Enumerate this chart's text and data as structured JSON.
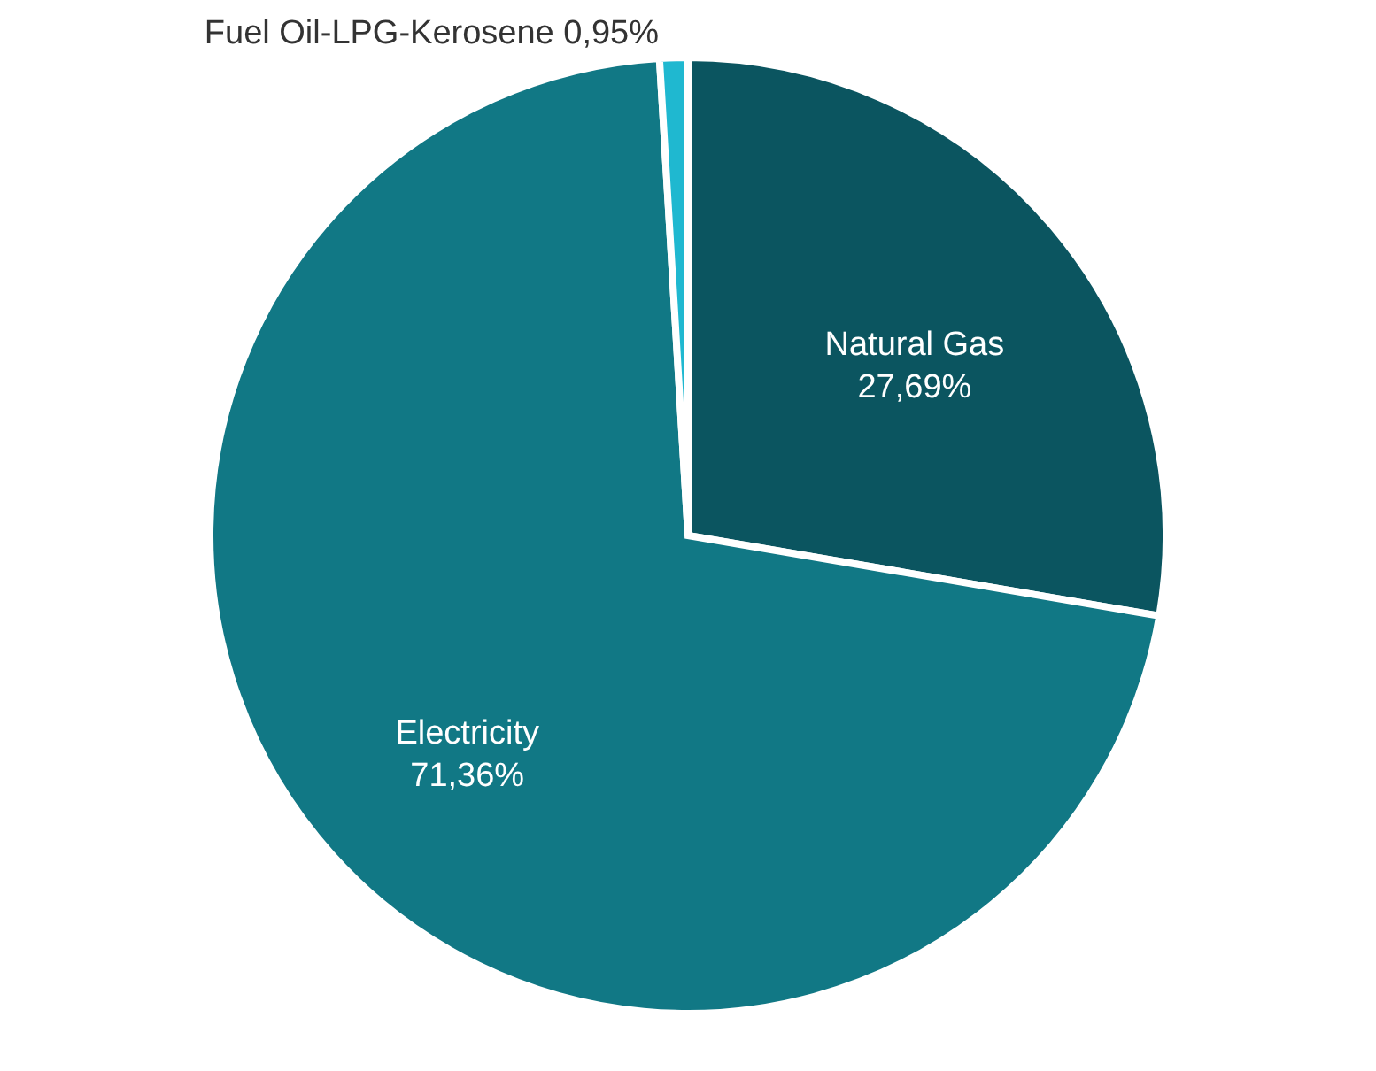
{
  "chart_data": {
    "type": "pie",
    "categories": [
      "Natural Gas",
      "Electricity",
      "Fuel Oil-LPG-Kerosene"
    ],
    "values": [
      27.69,
      71.36,
      0.95
    ],
    "colors": [
      "#0b5560",
      "#117885",
      "#1fb8d0"
    ],
    "value_labels": [
      "27,69%",
      "71,36%",
      "0,95%"
    ]
  }
}
